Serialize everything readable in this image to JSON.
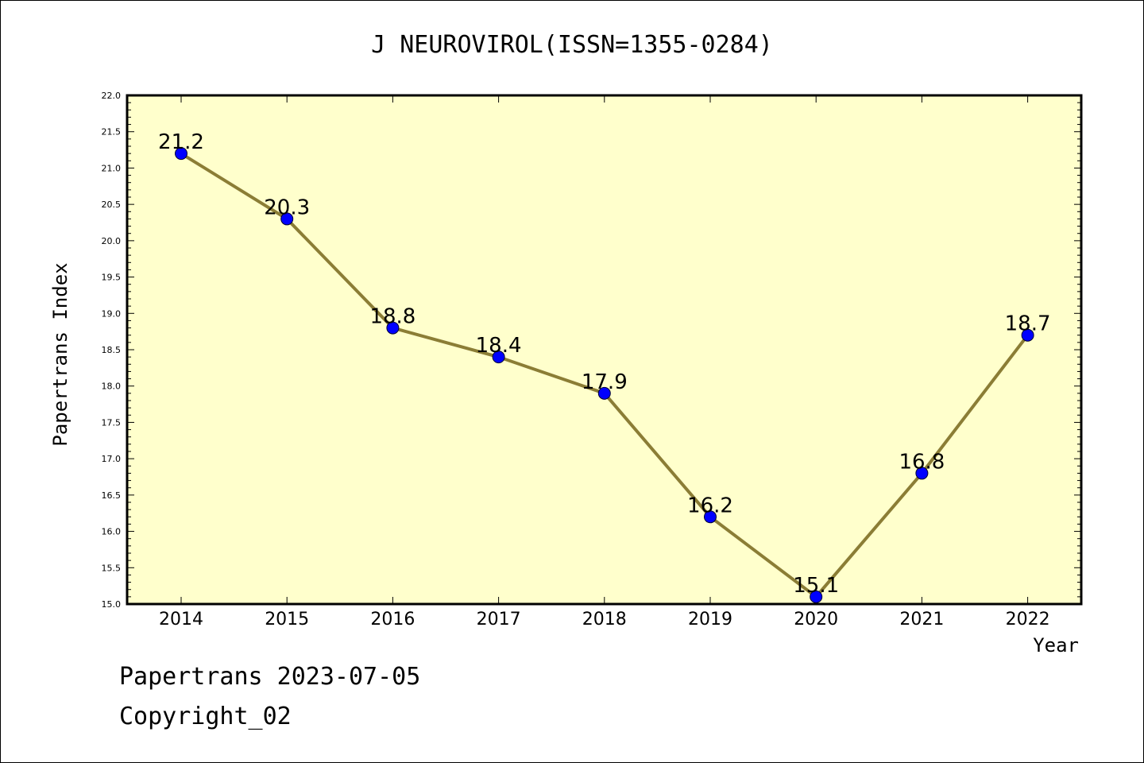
{
  "chart_data": {
    "type": "line",
    "title": "J NEUROVIROL(ISSN=1355-0284)",
    "xlabel": "Year",
    "ylabel": "Papertrans Index",
    "categories": [
      "2014",
      "2015",
      "2016",
      "2017",
      "2018",
      "2019",
      "2020",
      "2021",
      "2022"
    ],
    "values": [
      21.2,
      20.3,
      18.8,
      18.4,
      17.9,
      16.2,
      15.1,
      16.8,
      18.7
    ],
    "data_labels": [
      "21.2",
      "20.3",
      "18.8",
      "18.4",
      "17.9",
      "16.2",
      "15.1",
      "16.8",
      "18.7"
    ],
    "ylim": [
      15.0,
      22.0
    ],
    "yticks": [
      "15.0",
      "15.5",
      "16.0",
      "16.5",
      "17.0",
      "17.5",
      "18.0",
      "18.5",
      "19.0",
      "19.5",
      "20.0",
      "20.5",
      "21.0",
      "21.5",
      "22.0"
    ],
    "grid": false,
    "colors": {
      "plot_background": "#ffffcc",
      "line": "#8b7d35",
      "marker": "#0000ff"
    }
  },
  "footer": {
    "line1": "Papertrans 2023-07-05",
    "line2": "Copyright_02"
  }
}
